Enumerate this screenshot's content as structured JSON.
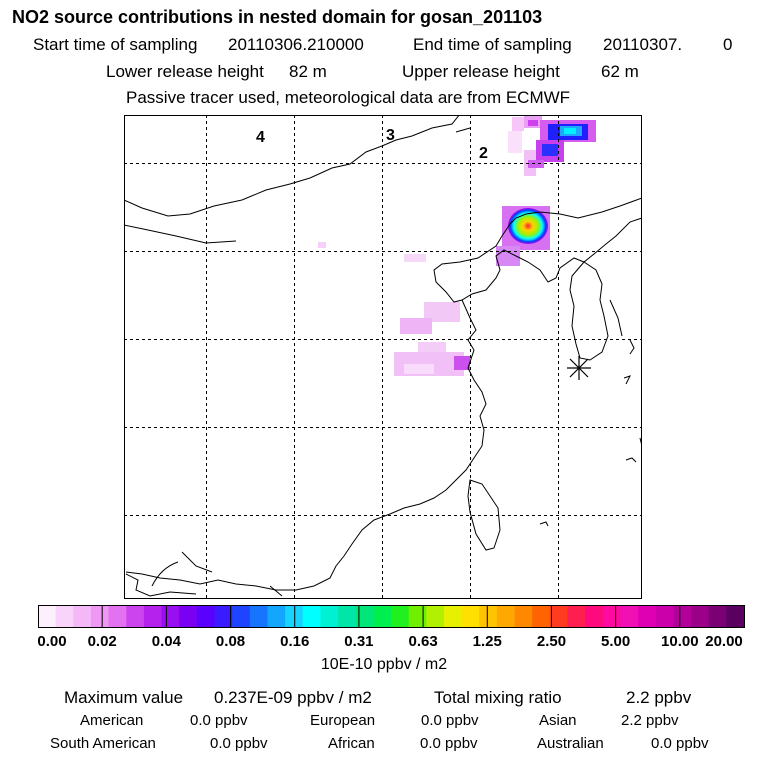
{
  "header": {
    "title": "NO2 source contributions in nested domain for gosan_201103",
    "start_label": "Start time of sampling",
    "start_value": "20110306.210000",
    "end_label": "End time of sampling",
    "end_value": "20110307.",
    "end_suffix": "0",
    "lower_label": "Lower release height",
    "lower_value": "82 m",
    "upper_label": "Upper release height",
    "upper_value": "62 m",
    "tracer_note": "Passive tracer used, meteorological data are from ECMWF"
  },
  "map": {
    "region_labels": [
      "4",
      "3",
      "2"
    ],
    "receptor_marker": "asterisk-receptor"
  },
  "colorbar": {
    "colors": [
      "#fdf0fd",
      "#f9d4fa",
      "#f4b8f8",
      "#ee98f4",
      "#e272f0",
      "#cc44ee",
      "#b522ee",
      "#9a0ef2",
      "#7a00f2",
      "#5a00ff",
      "#3a1aff",
      "#1e44ff",
      "#1674ff",
      "#12a6ff",
      "#16d4ff",
      "#00ffff",
      "#00f0d4",
      "#00e6a6",
      "#00e678",
      "#00ee4e",
      "#20f020",
      "#70f000",
      "#b0f000",
      "#e6f000",
      "#ffe000",
      "#ffc400",
      "#ffa800",
      "#ff8800",
      "#ff6400",
      "#ff3c20",
      "#ff1e50",
      "#ff0a7c",
      "#ff0aa0",
      "#f010b4",
      "#e000b4",
      "#cc00aa",
      "#b4009a",
      "#9a0088",
      "#7a0074",
      "#5a0060"
    ],
    "tick_labels": [
      "0.00",
      "0.02",
      "0.04",
      "0.08",
      "0.16",
      "0.31",
      "0.63",
      "1.25",
      "2.50",
      "5.00",
      "10.00",
      "20.00"
    ],
    "unit": "10E-10 ppbv / m2"
  },
  "summary": {
    "max_label": "Maximum value",
    "max_value": "0.237E-09 ppbv / m2",
    "total_label": "Total mixing ratio",
    "total_value": "2.2 ppbv",
    "sources": [
      {
        "name": "American",
        "value": "0.0 ppbv"
      },
      {
        "name": "European",
        "value": "0.0 ppbv"
      },
      {
        "name": "Asian",
        "value": "2.2 ppbv"
      },
      {
        "name": "South American",
        "value": "0.0 ppbv"
      },
      {
        "name": "African",
        "value": "0.0 ppbv"
      },
      {
        "name": "Australian",
        "value": "0.0 ppbv"
      }
    ]
  }
}
